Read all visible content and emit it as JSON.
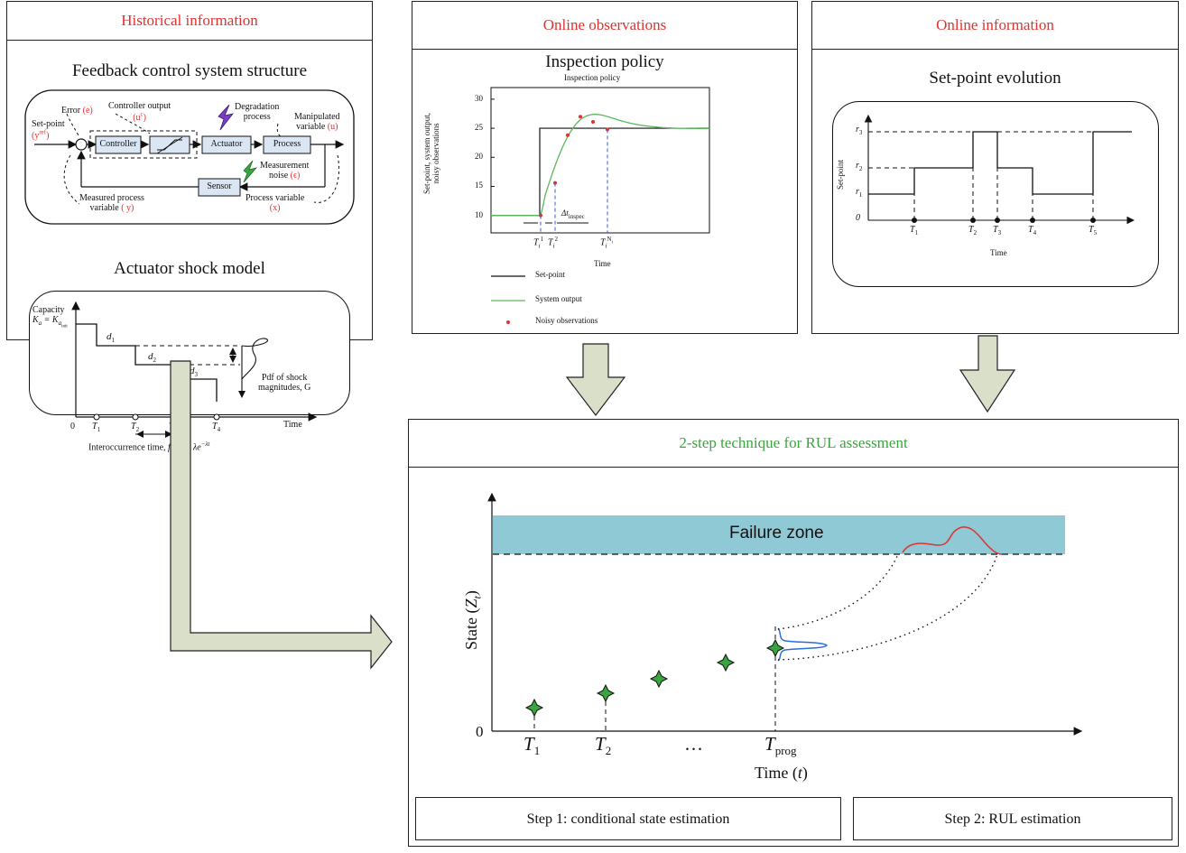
{
  "historical": {
    "header": "Historical information",
    "fcs_title": "Feedback control system structure",
    "fcs": {
      "setpoint": "Set-point",
      "setpoint_sym": "(y",
      "setpoint_sup": "ref",
      "setpoint_close": ")",
      "error": "Error",
      "error_sym": "(e)",
      "controller_output": "Controller output",
      "controller_output_sym": "(u",
      "controller_output_sup": "c",
      "controller_output_close": ")",
      "degradation_1": "Degradation",
      "degradation_2": "process",
      "manipulated_1": "Manipulated",
      "manipulated_2": "variable",
      "manipulated_sym": "(u)",
      "controller": "Controller",
      "actuator": "Actuator",
      "process": "Process",
      "sensor": "Sensor",
      "measurement_1": "Measurement",
      "measurement_2": "noise",
      "measurement_sym": "(ϵ)",
      "measured_1": "Measured process",
      "measured_2": "variable",
      "measured_sym": "( y)",
      "process_variable": "Process variable",
      "process_variable_sym": "(x)"
    },
    "shock_title": "Actuator shock model",
    "shock": {
      "capacity": "Capacity",
      "ka": "K",
      "ka_sub": "a",
      "eq": " = K",
      "kinit_sub": "a",
      "kinit_subsub": "init",
      "d1": "d",
      "d1_sub": "1",
      "d2": "d",
      "d2_sub": "2",
      "d3": "d",
      "d3_sub": "3",
      "pdf_1": "Pdf of shock",
      "pdf_2": "magnitudes, G",
      "zero": "0",
      "ticks": [
        {
          "t": "T",
          "s": "1"
        },
        {
          "t": "T",
          "s": "2"
        },
        {
          "t": "T",
          "s": "3"
        },
        {
          "t": "T",
          "s": "4"
        }
      ],
      "time": "Time",
      "interoccurrence": "Interoccurrence time, ",
      "interoccurrence_fn": "f",
      "interoccurrence_fn_sub": "T",
      "interoccurrence_eq": "(t) = λe",
      "interoccurrence_exp": "−λt"
    }
  },
  "online_obs": {
    "header": "Online observations",
    "title": "Inspection policy",
    "chart_title": "Inspection policy",
    "ylabel_1": "Set-point, system output,",
    "ylabel_2": "noisy observations",
    "xlabel": "Time",
    "yticks": [
      "10",
      "15",
      "20",
      "25",
      "30"
    ],
    "xticks": [
      {
        "t": "T",
        "sub": "i",
        "sup": "1"
      },
      {
        "t": "T",
        "sub": "i",
        "sup": "2"
      },
      {
        "t": "T",
        "sub": "i",
        "sup": "N"
      }
    ],
    "xticks_last_supsub": "i",
    "delta": "Δt",
    "delta_sub": "inspec",
    "legend": [
      "Set-point",
      "System output",
      "Noisy observations"
    ],
    "colors": {
      "setpoint": "#111111",
      "output": "#5cb85c",
      "noisy": "#e0312f",
      "dashed": "#3a5bd9"
    }
  },
  "online_info": {
    "header": "Online information",
    "title": "Set-point evolution",
    "ylabel": "Set-point",
    "xlabel": "Time",
    "yticks": [
      {
        "t": "r",
        "s": "3"
      },
      {
        "t": "r",
        "s": "2"
      },
      {
        "t": "r",
        "s": "1"
      },
      {
        "t": "0",
        "s": ""
      }
    ],
    "xticks": [
      {
        "t": "T",
        "s": "1"
      },
      {
        "t": "T",
        "s": "2"
      },
      {
        "t": "T",
        "s": "3"
      },
      {
        "t": "T",
        "s": "4"
      },
      {
        "t": "T",
        "s": "5"
      }
    ]
  },
  "rul": {
    "header": "2-step technique for RUL assessment",
    "failure_zone": "Failure zone",
    "ylabel": "State (",
    "ylabel_sym": "Z",
    "ylabel_sub": "t",
    "ylabel_close": ")",
    "zero": "0",
    "xticks": [
      {
        "t": "T",
        "s": "1"
      },
      {
        "t": "T",
        "s": "2"
      },
      {
        "t": "…",
        "s": ""
      },
      {
        "t": "T",
        "s": "prog"
      }
    ],
    "xlabel": "Time (",
    "xlabel_sym": "t",
    "xlabel_close": ")",
    "step1": "Step 1: conditional state estimation",
    "step2": "Step 2: RUL estimation",
    "colors": {
      "failure_zone": "#8fc9d6",
      "star": "#3aa53e",
      "pdf_blue": "#2a6fd6",
      "pdf_red": "#e0312f"
    }
  }
}
